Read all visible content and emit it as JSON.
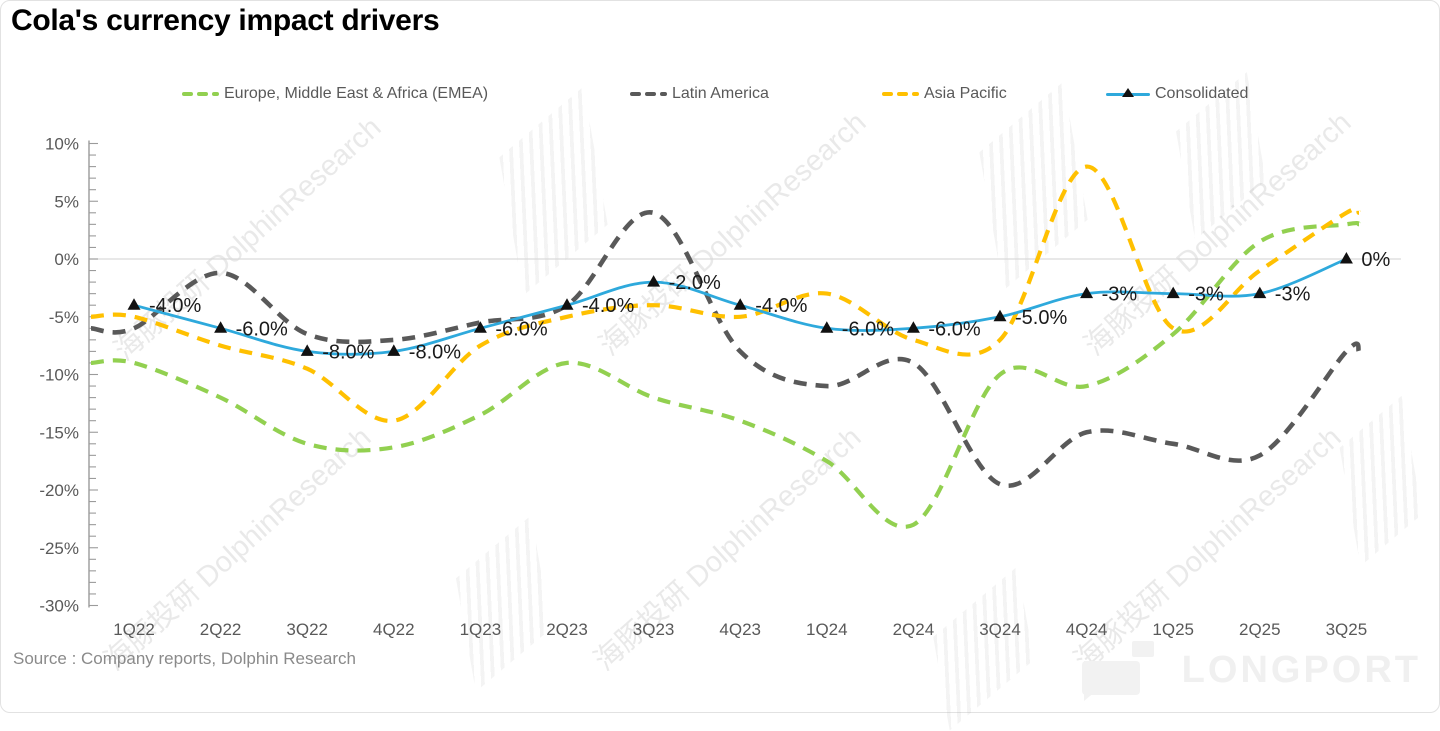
{
  "title": "Cola's currency impact drivers",
  "source": "Source : Company reports, Dolphin Research",
  "watermark": {
    "text": "海豚投研 DolphinResearch"
  },
  "brand": {
    "text": "LONGPORT"
  },
  "chart_data": {
    "type": "line",
    "title": "Cola's currency impact drivers",
    "categories": [
      "1Q22",
      "2Q22",
      "3Q22",
      "4Q22",
      "1Q23",
      "2Q23",
      "3Q23",
      "4Q23",
      "1Q24",
      "2Q24",
      "3Q24",
      "4Q24",
      "1Q25",
      "2Q25",
      "3Q25"
    ],
    "xlabel": "",
    "ylabel": "",
    "ylim": [
      -30,
      10
    ],
    "grid": "single horizontal gridline at 0%",
    "legend_position": "top",
    "y_ticks": [
      {
        "value": 10,
        "label": "10%"
      },
      {
        "value": 5,
        "label": "5%"
      },
      {
        "value": 0,
        "label": "0%"
      },
      {
        "value": -5,
        "label": "-5%"
      },
      {
        "value": -10,
        "label": "-10%"
      },
      {
        "value": -15,
        "label": "-15%"
      },
      {
        "value": -20,
        "label": "-20%"
      },
      {
        "value": -25,
        "label": "-25%"
      },
      {
        "value": -30,
        "label": "-30%"
      }
    ],
    "series": [
      {
        "name": "Europe, Middle East & Africa (EMEA)",
        "color": "#92d050",
        "line_style": "dashed",
        "values": [
          -9,
          -12,
          -16,
          -16.3,
          -13.5,
          -9,
          -12,
          -14,
          -17.5,
          -23,
          -10,
          -11,
          -6.5,
          1.5,
          3
        ]
      },
      {
        "name": "Latin America",
        "color": "#595959",
        "line_style": "dashed",
        "values": [
          -6,
          -1.2,
          -6.5,
          -7,
          -5.5,
          -4,
          4,
          -8,
          -11,
          -9,
          -19.5,
          -15,
          -16,
          -17,
          -8
        ]
      },
      {
        "name": "Asia Pacific",
        "color": "#ffc000",
        "line_style": "dashed",
        "values": [
          -5,
          -7.5,
          -9.5,
          -14,
          -7.5,
          -5,
          -4,
          -5,
          -3,
          -7,
          -7,
          8,
          -6,
          -1,
          4
        ]
      },
      {
        "name": "Consolidated",
        "color": "#2ea9dc",
        "line_style": "solid",
        "marker": "black-triangle",
        "values": [
          -4,
          -6,
          -8,
          -8,
          -6,
          -4,
          -2,
          -4,
          -6,
          -6,
          -5,
          -3,
          -3,
          -3,
          0
        ],
        "data_labels": [
          "-4.0%",
          "-6.0%",
          "-8.0%",
          "-8.0%",
          "-6.0%",
          "-4.0%",
          "-2.0%",
          "-4.0%",
          "-6.0%",
          "-6.0%",
          "-5.0%",
          "-3%",
          "-3%",
          "-3%",
          "0%"
        ]
      }
    ]
  }
}
